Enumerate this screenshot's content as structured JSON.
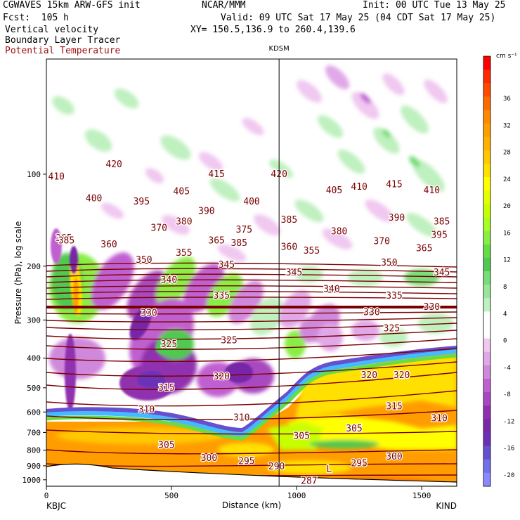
{
  "header": {
    "model": "CGWAVES 15km ARW-GFS init",
    "org": "NCAR/MMM",
    "init": "Init: 00 UTC Tue 13 May 25",
    "fcst": "Fcst:  105 h",
    "valid": "Valid: 09 UTC Sat 17 May 25 (04 CDT Sat 17 May 25)",
    "field1": "Vertical velocity",
    "xy": "XY= 150.5,136.9 to 260.4,139.6",
    "field2": "Boundary Layer Tracer",
    "field3": "Potential Temperature"
  },
  "colors": {
    "theta": "#7a0000",
    "field3_label": "#a01010"
  },
  "chart_data": {
    "type": "heatmap",
    "title": "",
    "station_marker": {
      "label": "KDSM",
      "x": 930
    },
    "xlabel": "Distance (km)",
    "ylabel": "Pressure (hPa), log scale",
    "x_range": [
      0,
      1640
    ],
    "x_ticks": [
      "0",
      "500",
      "1000",
      "1500"
    ],
    "x_tick_values": [
      0,
      500,
      1000,
      1500
    ],
    "x_end_labels": [
      "KBJC",
      "KIND"
    ],
    "y_ticks": [
      "100",
      "200",
      "300",
      "400",
      "500",
      "600",
      "700",
      "800",
      "900",
      "1000"
    ],
    "y_tick_values": [
      100,
      200,
      300,
      400,
      500,
      600,
      700,
      800,
      900,
      1000
    ],
    "colorbar": {
      "unit": "cm s⁻¹",
      "labels": [
        "36",
        "32",
        "28",
        "24",
        "20",
        "16",
        "12",
        "8",
        "4",
        "0",
        "-4",
        "-8",
        "-12",
        "-16",
        "-20"
      ],
      "colors": [
        "#ff0000",
        "#ff2a00",
        "#ff4a00",
        "#ff6a00",
        "#ff8800",
        "#ff9d00",
        "#ffb000",
        "#ffc800",
        "#ffe000",
        "#ffff00",
        "#e6ff00",
        "#c8ff00",
        "#a6ff22",
        "#88ee44",
        "#66dd44",
        "#4fc94f",
        "#77dd77",
        "#99e699",
        "#bff0bf",
        "#ffffff",
        "#ffffff",
        "#f0c8f0",
        "#e0a8e8",
        "#d088dc",
        "#c060d0",
        "#a848c0",
        "#9030b0",
        "#7828a8",
        "#6a30b8",
        "#6650d0",
        "#7070e8",
        "#8a88ff"
      ]
    },
    "theta_labels": [
      {
        "x": 40,
        "p": 102,
        "v": "410"
      },
      {
        "x": 270,
        "p": 93,
        "v": "420"
      },
      {
        "x": 680,
        "p": 100,
        "v": "415"
      },
      {
        "x": 930,
        "p": 100,
        "v": "420"
      },
      {
        "x": 1150,
        "p": 113,
        "v": "405"
      },
      {
        "x": 1250,
        "p": 110,
        "v": "410"
      },
      {
        "x": 1390,
        "p": 108,
        "v": "415"
      },
      {
        "x": 1540,
        "p": 113,
        "v": "410"
      },
      {
        "x": 190,
        "p": 120,
        "v": "400"
      },
      {
        "x": 380,
        "p": 123,
        "v": "395"
      },
      {
        "x": 540,
        "p": 114,
        "v": "405"
      },
      {
        "x": 640,
        "p": 132,
        "v": "390"
      },
      {
        "x": 820,
        "p": 123,
        "v": "400"
      },
      {
        "x": 970,
        "p": 141,
        "v": "385"
      },
      {
        "x": 1400,
        "p": 139,
        "v": "390"
      },
      {
        "x": 1580,
        "p": 143,
        "v": "385"
      },
      {
        "x": 450,
        "p": 150,
        "v": "370"
      },
      {
        "x": 550,
        "p": 143,
        "v": "380"
      },
      {
        "x": 790,
        "p": 152,
        "v": "375"
      },
      {
        "x": 1170,
        "p": 154,
        "v": "380"
      },
      {
        "x": 70,
        "p": 162,
        "v": "365"
      },
      {
        "x": 250,
        "p": 170,
        "v": "360"
      },
      {
        "x": 680,
        "p": 165,
        "v": "365"
      },
      {
        "x": 1340,
        "p": 166,
        "v": "370"
      },
      {
        "x": 1060,
        "p": 178,
        "v": "355"
      },
      {
        "x": 550,
        "p": 181,
        "v": "355"
      },
      {
        "x": 970,
        "p": 173,
        "v": "360"
      },
      {
        "x": 1510,
        "p": 175,
        "v": "365"
      },
      {
        "x": 390,
        "p": 191,
        "v": "350"
      },
      {
        "x": 1370,
        "p": 195,
        "v": "350"
      },
      {
        "x": 720,
        "p": 198,
        "v": "345"
      },
      {
        "x": 990,
        "p": 210,
        "v": "345"
      },
      {
        "x": 1580,
        "p": 210,
        "v": "345"
      },
      {
        "x": 490,
        "p": 222,
        "v": "340"
      },
      {
        "x": 1140,
        "p": 238,
        "v": "340"
      },
      {
        "x": 700,
        "p": 250,
        "v": "335"
      },
      {
        "x": 1390,
        "p": 250,
        "v": "335"
      },
      {
        "x": 410,
        "p": 285,
        "v": "330"
      },
      {
        "x": 1300,
        "p": 283,
        "v": "330"
      },
      {
        "x": 1540,
        "p": 272,
        "v": "330"
      },
      {
        "x": 490,
        "p": 360,
        "v": "325"
      },
      {
        "x": 730,
        "p": 350,
        "v": "325"
      },
      {
        "x": 1380,
        "p": 320,
        "v": "325"
      },
      {
        "x": 700,
        "p": 460,
        "v": "320"
      },
      {
        "x": 1290,
        "p": 455,
        "v": "320"
      },
      {
        "x": 1420,
        "p": 455,
        "v": "320"
      },
      {
        "x": 480,
        "p": 500,
        "v": "315"
      },
      {
        "x": 1390,
        "p": 575,
        "v": "315"
      },
      {
        "x": 400,
        "p": 590,
        "v": "310"
      },
      {
        "x": 780,
        "p": 627,
        "v": "310"
      },
      {
        "x": 1570,
        "p": 630,
        "v": "310"
      },
      {
        "x": 480,
        "p": 770,
        "v": "305"
      },
      {
        "x": 1020,
        "p": 720,
        "v": "305"
      },
      {
        "x": 1230,
        "p": 680,
        "v": "305"
      },
      {
        "x": 650,
        "p": 850,
        "v": "300"
      },
      {
        "x": 1390,
        "p": 840,
        "v": "300"
      },
      {
        "x": 800,
        "p": 870,
        "v": "295"
      },
      {
        "x": 1250,
        "p": 885,
        "v": "295"
      },
      {
        "x": 920,
        "p": 905,
        "v": "290"
      },
      {
        "x": 1130,
        "p": 925,
        "v": "L"
      },
      {
        "x": 1050,
        "p": 1010,
        "v": "287"
      },
      {
        "x": 80,
        "p": 165,
        "v": "385"
      },
      {
        "x": 770,
        "p": 168,
        "v": "385"
      },
      {
        "x": 1570,
        "p": 158,
        "v": "395"
      }
    ]
  }
}
